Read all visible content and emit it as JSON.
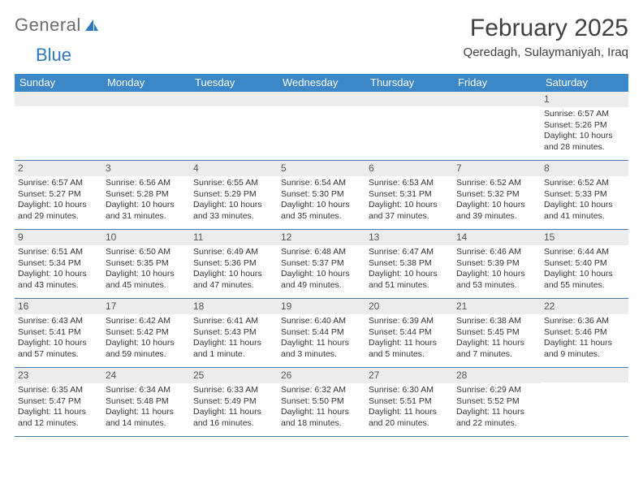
{
  "logo": {
    "text1": "General",
    "text2": "Blue"
  },
  "title": "February 2025",
  "location": "Qeredagh, Sulaymaniyah, Iraq",
  "colors": {
    "header_bg": "#3b87c8",
    "header_text": "#ffffff",
    "daynum_bg": "#ececec",
    "divider": "#4a7aa8",
    "logo_general": "#6b6b6b",
    "logo_blue": "#2f78bf",
    "body_text": "#333333"
  },
  "weekdays": [
    "Sunday",
    "Monday",
    "Tuesday",
    "Wednesday",
    "Thursday",
    "Friday",
    "Saturday"
  ],
  "weeks": [
    [
      {
        "n": "",
        "sr": "",
        "ss": "",
        "dl": ""
      },
      {
        "n": "",
        "sr": "",
        "ss": "",
        "dl": ""
      },
      {
        "n": "",
        "sr": "",
        "ss": "",
        "dl": ""
      },
      {
        "n": "",
        "sr": "",
        "ss": "",
        "dl": ""
      },
      {
        "n": "",
        "sr": "",
        "ss": "",
        "dl": ""
      },
      {
        "n": "",
        "sr": "",
        "ss": "",
        "dl": ""
      },
      {
        "n": "1",
        "sr": "Sunrise: 6:57 AM",
        "ss": "Sunset: 5:26 PM",
        "dl": "Daylight: 10 hours and 28 minutes."
      }
    ],
    [
      {
        "n": "2",
        "sr": "Sunrise: 6:57 AM",
        "ss": "Sunset: 5:27 PM",
        "dl": "Daylight: 10 hours and 29 minutes."
      },
      {
        "n": "3",
        "sr": "Sunrise: 6:56 AM",
        "ss": "Sunset: 5:28 PM",
        "dl": "Daylight: 10 hours and 31 minutes."
      },
      {
        "n": "4",
        "sr": "Sunrise: 6:55 AM",
        "ss": "Sunset: 5:29 PM",
        "dl": "Daylight: 10 hours and 33 minutes."
      },
      {
        "n": "5",
        "sr": "Sunrise: 6:54 AM",
        "ss": "Sunset: 5:30 PM",
        "dl": "Daylight: 10 hours and 35 minutes."
      },
      {
        "n": "6",
        "sr": "Sunrise: 6:53 AM",
        "ss": "Sunset: 5:31 PM",
        "dl": "Daylight: 10 hours and 37 minutes."
      },
      {
        "n": "7",
        "sr": "Sunrise: 6:52 AM",
        "ss": "Sunset: 5:32 PM",
        "dl": "Daylight: 10 hours and 39 minutes."
      },
      {
        "n": "8",
        "sr": "Sunrise: 6:52 AM",
        "ss": "Sunset: 5:33 PM",
        "dl": "Daylight: 10 hours and 41 minutes."
      }
    ],
    [
      {
        "n": "9",
        "sr": "Sunrise: 6:51 AM",
        "ss": "Sunset: 5:34 PM",
        "dl": "Daylight: 10 hours and 43 minutes."
      },
      {
        "n": "10",
        "sr": "Sunrise: 6:50 AM",
        "ss": "Sunset: 5:35 PM",
        "dl": "Daylight: 10 hours and 45 minutes."
      },
      {
        "n": "11",
        "sr": "Sunrise: 6:49 AM",
        "ss": "Sunset: 5:36 PM",
        "dl": "Daylight: 10 hours and 47 minutes."
      },
      {
        "n": "12",
        "sr": "Sunrise: 6:48 AM",
        "ss": "Sunset: 5:37 PM",
        "dl": "Daylight: 10 hours and 49 minutes."
      },
      {
        "n": "13",
        "sr": "Sunrise: 6:47 AM",
        "ss": "Sunset: 5:38 PM",
        "dl": "Daylight: 10 hours and 51 minutes."
      },
      {
        "n": "14",
        "sr": "Sunrise: 6:46 AM",
        "ss": "Sunset: 5:39 PM",
        "dl": "Daylight: 10 hours and 53 minutes."
      },
      {
        "n": "15",
        "sr": "Sunrise: 6:44 AM",
        "ss": "Sunset: 5:40 PM",
        "dl": "Daylight: 10 hours and 55 minutes."
      }
    ],
    [
      {
        "n": "16",
        "sr": "Sunrise: 6:43 AM",
        "ss": "Sunset: 5:41 PM",
        "dl": "Daylight: 10 hours and 57 minutes."
      },
      {
        "n": "17",
        "sr": "Sunrise: 6:42 AM",
        "ss": "Sunset: 5:42 PM",
        "dl": "Daylight: 10 hours and 59 minutes."
      },
      {
        "n": "18",
        "sr": "Sunrise: 6:41 AM",
        "ss": "Sunset: 5:43 PM",
        "dl": "Daylight: 11 hours and 1 minute."
      },
      {
        "n": "19",
        "sr": "Sunrise: 6:40 AM",
        "ss": "Sunset: 5:44 PM",
        "dl": "Daylight: 11 hours and 3 minutes."
      },
      {
        "n": "20",
        "sr": "Sunrise: 6:39 AM",
        "ss": "Sunset: 5:44 PM",
        "dl": "Daylight: 11 hours and 5 minutes."
      },
      {
        "n": "21",
        "sr": "Sunrise: 6:38 AM",
        "ss": "Sunset: 5:45 PM",
        "dl": "Daylight: 11 hours and 7 minutes."
      },
      {
        "n": "22",
        "sr": "Sunrise: 6:36 AM",
        "ss": "Sunset: 5:46 PM",
        "dl": "Daylight: 11 hours and 9 minutes."
      }
    ],
    [
      {
        "n": "23",
        "sr": "Sunrise: 6:35 AM",
        "ss": "Sunset: 5:47 PM",
        "dl": "Daylight: 11 hours and 12 minutes."
      },
      {
        "n": "24",
        "sr": "Sunrise: 6:34 AM",
        "ss": "Sunset: 5:48 PM",
        "dl": "Daylight: 11 hours and 14 minutes."
      },
      {
        "n": "25",
        "sr": "Sunrise: 6:33 AM",
        "ss": "Sunset: 5:49 PM",
        "dl": "Daylight: 11 hours and 16 minutes."
      },
      {
        "n": "26",
        "sr": "Sunrise: 6:32 AM",
        "ss": "Sunset: 5:50 PM",
        "dl": "Daylight: 11 hours and 18 minutes."
      },
      {
        "n": "27",
        "sr": "Sunrise: 6:30 AM",
        "ss": "Sunset: 5:51 PM",
        "dl": "Daylight: 11 hours and 20 minutes."
      },
      {
        "n": "28",
        "sr": "Sunrise: 6:29 AM",
        "ss": "Sunset: 5:52 PM",
        "dl": "Daylight: 11 hours and 22 minutes."
      },
      {
        "n": "",
        "sr": "",
        "ss": "",
        "dl": ""
      }
    ]
  ]
}
